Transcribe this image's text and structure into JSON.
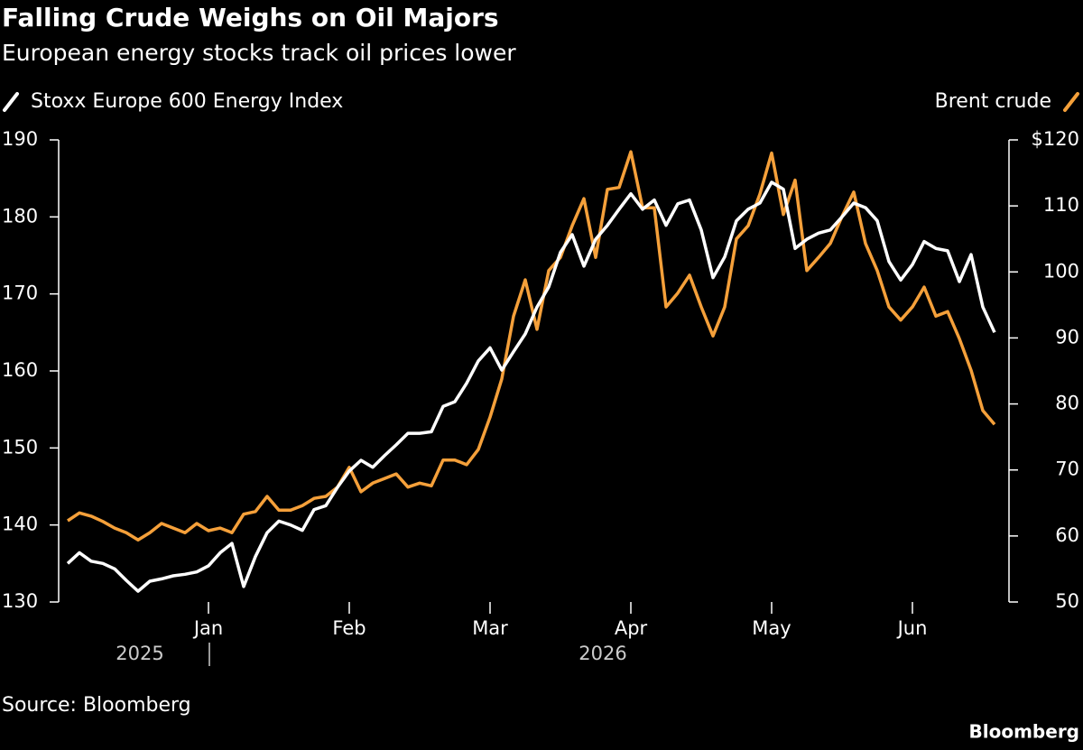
{
  "chart_data": {
    "type": "line",
    "title": "Falling Crude Weighs on Oil Majors",
    "subtitle": "European energy stocks track oil prices lower",
    "categories": [
      null,
      null,
      null,
      null,
      null,
      null,
      null,
      null,
      null,
      null,
      null,
      null,
      "Jan",
      null,
      null,
      null,
      null,
      null,
      null,
      null,
      null,
      null,
      null,
      null,
      "Feb",
      null,
      null,
      null,
      null,
      null,
      null,
      null,
      null,
      null,
      null,
      null,
      "Mar",
      null,
      null,
      null,
      null,
      null,
      null,
      null,
      null,
      null,
      null,
      null,
      "Apr",
      null,
      null,
      null,
      null,
      null,
      null,
      null,
      null,
      null,
      null,
      null,
      "May",
      null,
      null,
      null,
      null,
      null,
      null,
      null,
      null,
      null,
      null,
      null,
      "Jun",
      null,
      null,
      null,
      null,
      null,
      null,
      null
    ],
    "x_year_labels": [
      "2025",
      "2026"
    ],
    "series": [
      {
        "name": "Stoxx Europe 600 Energy Index",
        "color": "#ffffff",
        "axis": "y",
        "values": [
          135.0,
          136.4,
          135.3,
          135.0,
          134.3,
          132.8,
          131.4,
          132.7,
          133.0,
          133.4,
          133.6,
          133.9,
          134.7,
          136.4,
          137.6,
          132.0,
          135.9,
          139.0,
          140.5,
          140.0,
          139.3,
          142.0,
          142.5,
          144.9,
          147.0,
          148.4,
          147.5,
          149.0,
          150.4,
          151.9,
          151.9,
          152.1,
          155.4,
          156.0,
          158.4,
          161.3,
          163.0,
          160.1,
          162.5,
          164.8,
          168.3,
          170.9,
          175.4,
          177.7,
          173.6,
          177.1,
          178.9,
          181.0,
          183.0,
          181.0,
          182.2,
          178.9,
          181.7,
          182.2,
          178.3,
          172.1,
          174.8,
          179.5,
          181.0,
          181.8,
          184.5,
          183.6,
          175.9,
          177.1,
          177.9,
          178.3,
          180.0,
          181.8,
          181.2,
          179.5,
          174.2,
          171.8,
          173.8,
          176.8,
          175.9,
          175.6,
          171.6,
          175.1,
          168.3,
          165.0
        ]
      },
      {
        "name": "Brent crude",
        "color": "#f5a03a",
        "axis": "y2",
        "values": [
          62.3,
          63.5,
          63.0,
          62.2,
          61.2,
          60.5,
          59.4,
          60.5,
          61.9,
          61.2,
          60.5,
          61.9,
          60.8,
          61.2,
          60.5,
          63.3,
          63.7,
          66.0,
          63.9,
          63.9,
          64.6,
          65.7,
          66.0,
          67.4,
          70.4,
          66.7,
          68.0,
          68.7,
          69.4,
          67.4,
          68.0,
          67.6,
          71.5,
          71.5,
          70.8,
          73.1,
          78.0,
          83.8,
          93.3,
          98.8,
          91.3,
          100.2,
          102.2,
          107.0,
          111.1,
          102.2,
          112.5,
          112.8,
          118.2,
          109.7,
          109.7,
          94.7,
          96.8,
          99.5,
          94.7,
          90.3,
          94.7,
          105.0,
          107.0,
          111.8,
          118.0,
          108.7,
          113.9,
          100.2,
          102.2,
          104.3,
          108.4,
          112.1,
          104.3,
          100.2,
          94.7,
          92.7,
          94.7,
          97.7,
          93.3,
          94.0,
          89.9,
          85.1,
          79.0,
          76.9
        ]
      }
    ],
    "ylim": [
      130,
      190
    ],
    "yticks": [
      130,
      140,
      150,
      160,
      170,
      180,
      190
    ],
    "y2lim": [
      50,
      120
    ],
    "y2ticks": [
      50,
      60,
      70,
      80,
      90,
      100,
      110,
      {
        "value": 120,
        "label": "$120"
      }
    ],
    "source": "Source: Bloomberg",
    "brand": "Bloomberg"
  }
}
